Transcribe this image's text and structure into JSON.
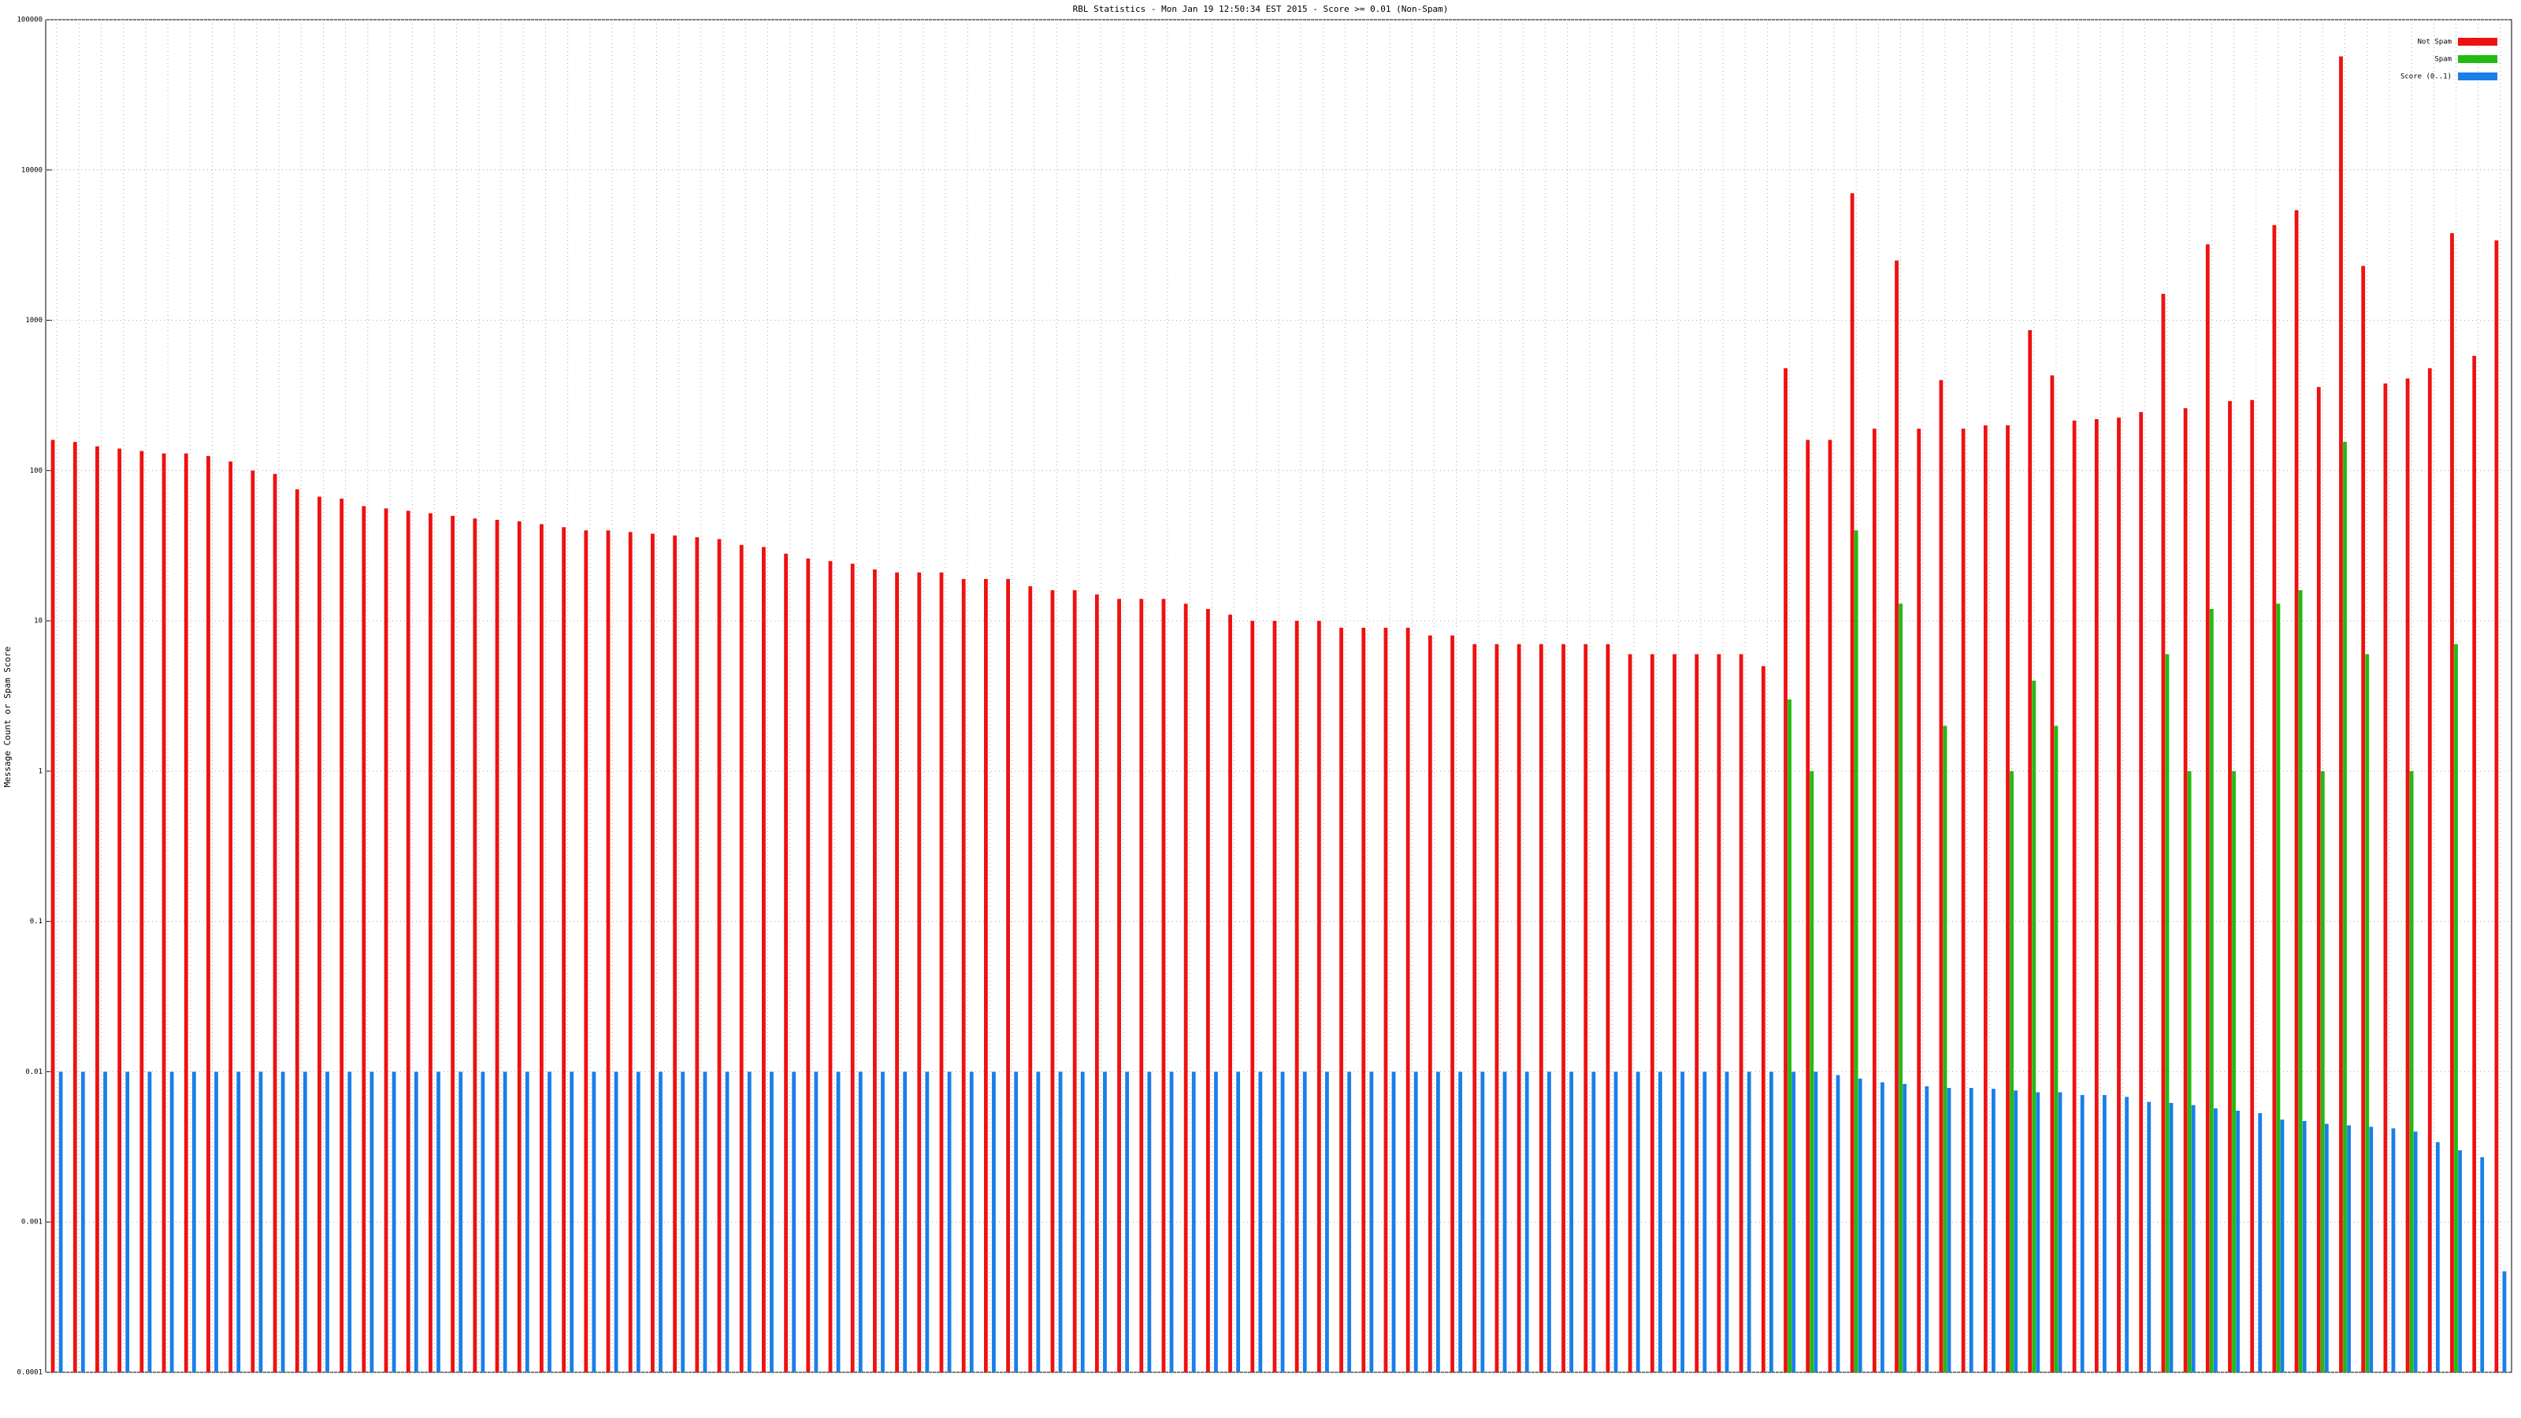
{
  "chart_data": {
    "type": "bar",
    "title": "RBL Statistics - Mon Jan 19 12:50:34 EST 2015 - Score >= 0.01 (Non-Spam)",
    "y_label": "Message Count or Spam Score",
    "log_scale": true,
    "grid": true,
    "legend": "top-right",
    "ylim": [
      0.0001,
      100000
    ],
    "yticks": [
      0.0001,
      0.001,
      0.01,
      0.1,
      1,
      10,
      100,
      1000,
      10000,
      100000
    ],
    "categories": [
      null,
      null,
      null,
      null,
      null,
      null,
      null,
      null,
      null,
      null,
      null,
      null,
      null,
      null,
      null,
      null,
      null,
      null,
      null,
      null,
      null,
      null,
      null,
      null,
      null,
      null,
      null,
      null,
      null,
      null,
      null,
      null,
      null,
      null,
      null,
      null,
      null,
      null,
      null,
      null,
      null,
      null,
      null,
      null,
      null,
      null,
      null,
      null,
      null,
      null,
      null,
      null,
      null,
      null,
      null,
      null,
      null,
      null,
      null,
      null,
      null,
      null,
      null,
      null,
      null,
      null,
      null,
      null,
      null,
      null,
      null,
      null,
      null,
      null,
      null,
      null,
      null,
      null,
      null,
      null,
      null,
      null,
      null,
      null,
      null,
      null,
      null,
      null,
      null,
      null,
      null,
      null,
      null,
      null,
      null,
      null,
      null,
      null,
      null,
      null,
      null,
      null,
      null,
      null,
      null,
      null,
      null,
      null,
      null,
      null,
      null
    ],
    "series": [
      {
        "name": "Not Spam",
        "color": "#ee1111",
        "values": [
          160,
          155,
          145,
          140,
          135,
          130,
          130,
          125,
          115,
          100,
          95,
          75,
          67,
          65,
          58,
          56,
          54,
          52,
          50,
          48,
          47,
          46,
          44,
          42,
          40,
          40,
          39,
          38,
          37,
          36,
          35,
          32,
          31,
          28,
          26,
          25,
          24,
          22,
          21,
          21,
          21,
          19,
          19,
          19,
          17,
          16,
          16,
          15,
          14,
          14,
          14,
          13,
          12,
          11,
          10,
          10,
          10,
          10,
          9,
          9,
          9,
          9,
          8,
          8,
          7,
          7,
          7,
          7,
          7,
          7,
          7,
          6,
          6,
          6,
          6,
          6,
          6,
          5,
          480,
          160,
          160,
          7000,
          190,
          2500,
          190,
          400,
          190,
          200,
          200,
          860,
          430,
          215,
          220,
          225,
          245,
          1500,
          260,
          3200,
          290,
          295,
          4300,
          5400,
          360,
          57000,
          2300,
          380,
          410,
          480,
          3800,
          580,
          3400
        ]
      },
      {
        "name": "Spam",
        "color": "#22bb11",
        "values": [
          null,
          null,
          null,
          null,
          null,
          null,
          null,
          null,
          null,
          null,
          null,
          null,
          null,
          null,
          null,
          null,
          null,
          null,
          null,
          null,
          null,
          null,
          null,
          null,
          null,
          null,
          null,
          null,
          null,
          null,
          null,
          null,
          null,
          null,
          null,
          null,
          null,
          null,
          null,
          null,
          null,
          null,
          null,
          null,
          null,
          null,
          null,
          null,
          null,
          null,
          null,
          null,
          null,
          null,
          null,
          null,
          null,
          null,
          null,
          null,
          null,
          null,
          null,
          null,
          null,
          null,
          null,
          null,
          null,
          null,
          null,
          null,
          null,
          null,
          null,
          null,
          null,
          null,
          3,
          1,
          null,
          40,
          null,
          13,
          null,
          2,
          null,
          null,
          1,
          4,
          2,
          null,
          null,
          null,
          null,
          6,
          1,
          12,
          1,
          null,
          13,
          16,
          1,
          155,
          6,
          null,
          1,
          null,
          7,
          null,
          null
        ]
      },
      {
        "name": "Score (0..1)",
        "color": "#1a7fe8",
        "values": [
          0.01,
          0.01,
          0.01,
          0.01,
          0.01,
          0.01,
          0.01,
          0.01,
          0.01,
          0.01,
          0.01,
          0.01,
          0.01,
          0.01,
          0.01,
          0.01,
          0.01,
          0.01,
          0.01,
          0.01,
          0.01,
          0.01,
          0.01,
          0.01,
          0.01,
          0.01,
          0.01,
          0.01,
          0.01,
          0.01,
          0.01,
          0.01,
          0.01,
          0.01,
          0.01,
          0.01,
          0.01,
          0.01,
          0.01,
          0.01,
          0.01,
          0.01,
          0.01,
          0.01,
          0.01,
          0.01,
          0.01,
          0.01,
          0.01,
          0.01,
          0.01,
          0.01,
          0.01,
          0.01,
          0.01,
          0.01,
          0.01,
          0.01,
          0.01,
          0.01,
          0.01,
          0.01,
          0.01,
          0.01,
          0.01,
          0.01,
          0.01,
          0.01,
          0.01,
          0.01,
          0.01,
          0.01,
          0.01,
          0.01,
          0.01,
          0.01,
          0.01,
          0.01,
          0.01,
          0.01,
          0.0095,
          0.009,
          0.0085,
          0.0083,
          0.008,
          0.0078,
          0.0078,
          0.0077,
          0.0075,
          0.0073,
          0.0073,
          0.007,
          0.007,
          0.0068,
          0.0063,
          0.0062,
          0.006,
          0.0057,
          0.0055,
          0.0053,
          0.0048,
          0.0047,
          0.0045,
          0.0044,
          0.0043,
          0.0042,
          0.004,
          0.0034,
          0.003,
          0.0027,
          0.00047
        ]
      }
    ]
  }
}
